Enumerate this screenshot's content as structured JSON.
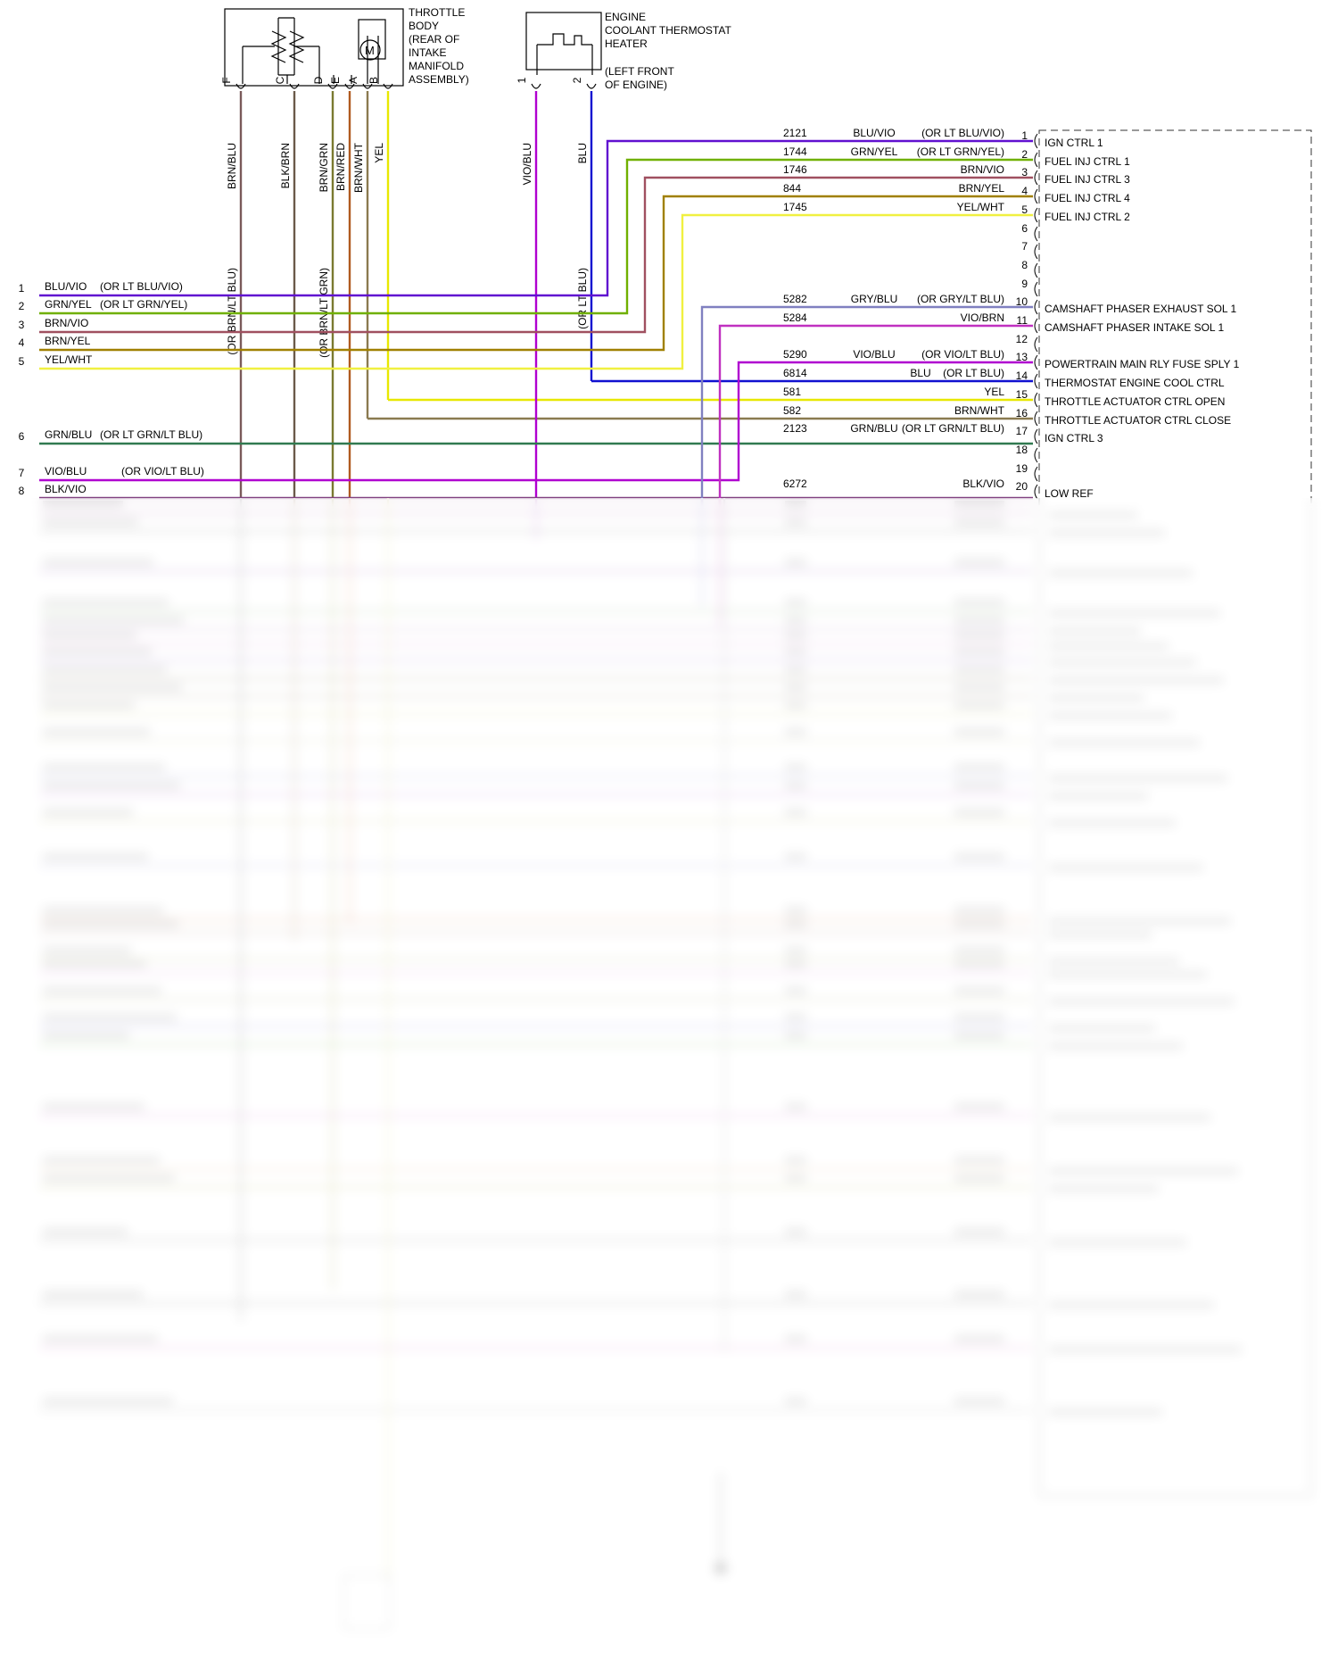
{
  "components": {
    "throttle_body": {
      "lines": [
        "THROTTLE",
        "BODY",
        "(REAR OF",
        "INTAKE",
        "MANIFOLD",
        "ASSEMBLY)"
      ],
      "motor_symbol": "M"
    },
    "thermostat_heater": {
      "lines": [
        "ENGINE",
        "COOLANT THERMOSTAT",
        "HEATER"
      ],
      "location": [
        "(LEFT FRONT",
        "OF ENGINE)"
      ]
    }
  },
  "vertical_wires": [
    {
      "pin": "F",
      "color_label": "BRN/BLU",
      "alt_label": "(OR BRN/LT BLU)",
      "color": "#7a5a5a"
    },
    {
      "pin": "C",
      "color_label": "BLK/BRN",
      "alt_label": "",
      "color": "#6b5a4a"
    },
    {
      "pin": "D",
      "color_label": "BRN/GRN",
      "alt_label": "(OR BRN/LT GRN)",
      "color": "#7a7a30"
    },
    {
      "pin": "E",
      "color_label": "BRN/RED",
      "alt_label": "",
      "color": "#b05a20"
    },
    {
      "pin": "A",
      "color_label": "BRN/WHT",
      "alt_label": "",
      "color": "#8a7a50"
    },
    {
      "pin": "B",
      "color_label": "YEL",
      "alt_label": "",
      "color": "#f0f000"
    },
    {
      "pin": "1",
      "color_label": "VIO/BLU",
      "alt_label": "",
      "color": "#b000d0"
    },
    {
      "pin": "2",
      "color_label": "BLU",
      "alt_label": "(OR LT BLU)",
      "color": "#1010d0"
    }
  ],
  "left_wires": [
    {
      "num": "1",
      "label": "BLU/VIO",
      "alt": "(OR LT BLU/VIO)"
    },
    {
      "num": "2",
      "label": "GRN/YEL",
      "alt": "(OR LT GRN/YEL)"
    },
    {
      "num": "3",
      "label": "BRN/VIO",
      "alt": ""
    },
    {
      "num": "4",
      "label": "BRN/YEL",
      "alt": ""
    },
    {
      "num": "5",
      "label": "YEL/WHT",
      "alt": ""
    },
    {
      "num": "6",
      "label": "GRN/BLU",
      "alt": "(OR LT GRN/LT BLU)"
    },
    {
      "num": "7",
      "label": "VIO/BLU",
      "alt": "(OR VIO/LT BLU)"
    },
    {
      "num": "8",
      "label": "BLK/VIO",
      "alt": ""
    }
  ],
  "pcm_pins": [
    {
      "pin": "1",
      "circuit": "2121",
      "color": "BLU/VIO",
      "alt": "(OR LT BLU/VIO)",
      "function": "IGN CTRL 1"
    },
    {
      "pin": "2",
      "circuit": "1744",
      "color": "GRN/YEL",
      "alt": "(OR LT GRN/YEL)",
      "function": "FUEL INJ CTRL 1"
    },
    {
      "pin": "3",
      "circuit": "1746",
      "color": "BRN/VIO",
      "alt": "",
      "function": "FUEL INJ CTRL 3"
    },
    {
      "pin": "4",
      "circuit": "844",
      "color": "BRN/YEL",
      "alt": "",
      "function": "FUEL INJ CTRL 4"
    },
    {
      "pin": "5",
      "circuit": "1745",
      "color": "YEL/WHT",
      "alt": "",
      "function": "FUEL INJ CTRL 2"
    },
    {
      "pin": "6",
      "circuit": "",
      "color": "",
      "alt": "",
      "function": ""
    },
    {
      "pin": "7",
      "circuit": "",
      "color": "",
      "alt": "",
      "function": ""
    },
    {
      "pin": "8",
      "circuit": "",
      "color": "",
      "alt": "",
      "function": ""
    },
    {
      "pin": "9",
      "circuit": "",
      "color": "",
      "alt": "",
      "function": ""
    },
    {
      "pin": "10",
      "circuit": "5282",
      "color": "GRY/BLU",
      "alt": "(OR GRY/LT BLU)",
      "function": "CAMSHAFT PHASER EXHAUST SOL 1"
    },
    {
      "pin": "11",
      "circuit": "5284",
      "color": "VIO/BRN",
      "alt": "",
      "function": "CAMSHAFT PHASER INTAKE SOL 1"
    },
    {
      "pin": "12",
      "circuit": "",
      "color": "",
      "alt": "",
      "function": ""
    },
    {
      "pin": "13",
      "circuit": "5290",
      "color": "VIO/BLU",
      "alt": "(OR VIO/LT BLU)",
      "function": "POWERTRAIN MAIN RLY FUSE SPLY 1"
    },
    {
      "pin": "14",
      "circuit": "6814",
      "color": "BLU",
      "alt": "(OR LT BLU)",
      "function": "THERMOSTAT ENGINE COOL CTRL"
    },
    {
      "pin": "15",
      "circuit": "581",
      "color": "YEL",
      "alt": "",
      "function": "THROTTLE ACTUATOR CTRL OPEN"
    },
    {
      "pin": "16",
      "circuit": "582",
      "color": "BRN/WHT",
      "alt": "",
      "function": "THROTTLE ACTUATOR CTRL CLOSE"
    },
    {
      "pin": "17",
      "circuit": "2123",
      "color": "GRN/BLU",
      "alt": "(OR LT GRN/LT BLU)",
      "function": "IGN CTRL 3"
    },
    {
      "pin": "18",
      "circuit": "",
      "color": "",
      "alt": "",
      "function": ""
    },
    {
      "pin": "19",
      "circuit": "",
      "color": "",
      "alt": "",
      "function": ""
    },
    {
      "pin": "20",
      "circuit": "6272",
      "color": "BLK/VIO",
      "alt": "",
      "function": "LOW REF"
    }
  ],
  "colors": {
    "BLU/VIO": "#6010d0",
    "GRN/YEL": "#70b000",
    "BRN/VIO": "#a05060",
    "BRN/YEL": "#a08000",
    "YEL/WHT": "#f0f040",
    "GRY/BLU": "#8080c0",
    "VIO/BRN": "#c030c0",
    "VIO/BLU": "#b000d0",
    "BLU": "#1010d0",
    "YEL": "#f0f000",
    "BRN/WHT": "#8a7a50",
    "GRN/BLU": "#307a50",
    "BLK/VIO": "#804080"
  }
}
